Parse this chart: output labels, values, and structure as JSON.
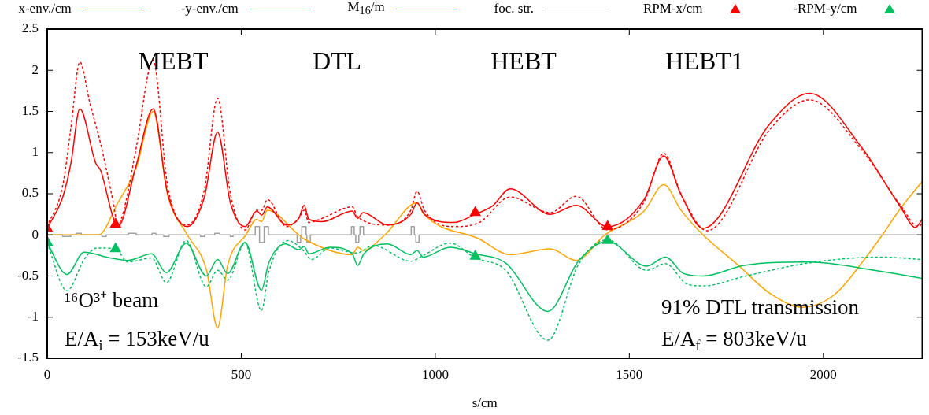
{
  "chart_data": {
    "type": "line",
    "xlabel": "s/cm",
    "xlim": [
      0,
      2255
    ],
    "xticks": [
      0,
      500,
      1000,
      1500,
      2000
    ],
    "ylim": [
      -1.5,
      2.5
    ],
    "yticks": [
      -1.5,
      -1,
      -0.5,
      0,
      0.5,
      1,
      1.5,
      2,
      2.5
    ],
    "legend": "top",
    "series": [
      {
        "name": "x-env./cm",
        "color": "#ff0000",
        "line_style": "solid",
        "x": [
          0,
          40,
          61,
          84,
          125,
          138,
          168,
          182,
          229,
          273,
          310,
          361,
          405,
          439,
          472,
          510,
          540,
          553,
          567,
          617,
          648,
          662,
          674,
          708,
          786,
          800,
          814,
          877,
          937,
          953,
          972,
          1047,
          1103,
          1147,
          1193,
          1296,
          1363,
          1444,
          1538,
          1589,
          1633,
          1690,
          1862,
          1964,
          2099,
          2200,
          2237,
          2255
        ],
        "values": [
          0.08,
          0.46,
          0.87,
          1.53,
          0.87,
          0.78,
          0.24,
          0.1,
          0.84,
          1.53,
          0.51,
          0.1,
          0.46,
          1.25,
          0.39,
          0.1,
          0.29,
          0.24,
          0.34,
          0.12,
          0.2,
          0.36,
          0.19,
          0.16,
          0.29,
          0.2,
          0.27,
          0.12,
          0.25,
          0.39,
          0.25,
          0.15,
          0.25,
          0.35,
          0.56,
          0.25,
          0.36,
          0.1,
          0.43,
          0.96,
          0.49,
          0.08,
          1.35,
          1.72,
          1.06,
          0.33,
          0.09,
          0.19
        ]
      },
      {
        "color": "#ff0000",
        "line_style": "dotted",
        "x": [
          0,
          40,
          61,
          84,
          110,
          138,
          170,
          182,
          200,
          229,
          273,
          310,
          361,
          405,
          439,
          472,
          510,
          540,
          553,
          567,
          617,
          648,
          662,
          674,
          708,
          786,
          800,
          877,
          937,
          953,
          972,
          1047,
          1113,
          1193,
          1296,
          1363,
          1444,
          1538,
          1589,
          1633,
          1700,
          1862,
          1964,
          2099,
          2200,
          2245,
          2255
        ],
        "values": [
          0.1,
          0.6,
          1.3,
          2.1,
          1.6,
          1.1,
          0.4,
          0.12,
          0.35,
          1.05,
          2.12,
          0.6,
          0.12,
          0.55,
          1.66,
          0.5,
          0.06,
          0.3,
          0.3,
          0.43,
          0.1,
          0.2,
          0.3,
          0.15,
          0.2,
          0.34,
          0.22,
          0.12,
          0.3,
          0.53,
          0.3,
          0.1,
          0.15,
          0.46,
          0.27,
          0.47,
          0.06,
          0.4,
          0.99,
          0.5,
          0.05,
          1.28,
          1.64,
          1.03,
          0.35,
          0.1,
          0.14
        ]
      },
      {
        "name": "-y-env./cm",
        "color": "#00c060",
        "line_style": "solid",
        "x": [
          0,
          51,
          95,
          162,
          208,
          269,
          307,
          358,
          410,
          439,
          465,
          510,
          552,
          571,
          614,
          648,
          662,
          674,
          729,
          786,
          800,
          816,
          877,
          937,
          953,
          969,
          1038,
          1103,
          1181,
          1290,
          1370,
          1444,
          1545,
          1593,
          1640,
          1690,
          1796,
          1964,
          2132,
          2255
        ],
        "values": [
          -0.1,
          -0.48,
          -0.21,
          -0.28,
          -0.31,
          -0.23,
          -0.46,
          -0.1,
          -0.5,
          -0.3,
          -0.47,
          -0.09,
          -0.67,
          -0.34,
          -0.11,
          -0.18,
          -0.14,
          -0.23,
          -0.15,
          -0.23,
          -0.37,
          -0.23,
          -0.11,
          -0.24,
          -0.19,
          -0.27,
          -0.15,
          -0.23,
          -0.34,
          -0.93,
          -0.31,
          -0.08,
          -0.38,
          -0.27,
          -0.47,
          -0.5,
          -0.37,
          -0.33,
          -0.43,
          -0.53
        ]
      },
      {
        "color": "#00c060",
        "line_style": "dotted",
        "x": [
          0,
          51,
          95,
          128,
          176,
          208,
          269,
          307,
          358,
          410,
          439,
          465,
          510,
          552,
          571,
          620,
          662,
          680,
          729,
          797,
          840,
          937,
          969,
          1038,
          1103,
          1181,
          1290,
          1370,
          1444,
          1545,
          1593,
          1650,
          1690,
          1800,
          1964,
          2148,
          2255
        ],
        "values": [
          -0.1,
          -0.68,
          -0.3,
          -0.16,
          -0.17,
          -0.33,
          -0.28,
          -0.58,
          -0.07,
          -0.63,
          -0.43,
          -0.55,
          -0.1,
          -0.92,
          -0.45,
          -0.07,
          -0.2,
          -0.3,
          -0.16,
          -0.22,
          -0.13,
          -0.32,
          -0.25,
          -0.1,
          -0.28,
          -0.43,
          -1.28,
          -0.35,
          -0.06,
          -0.43,
          -0.35,
          -0.6,
          -0.62,
          -0.5,
          -0.34,
          -0.27,
          -0.3
        ]
      },
      {
        "name": "M$_{16}$/m",
        "color": "#ffa500",
        "line_style": "solid",
        "x": [
          0,
          132,
          182,
          229,
          273,
          310,
          361,
          410,
          439,
          465,
          512,
          540,
          552,
          567,
          648,
          662,
          786,
          800,
          814,
          870,
          953,
          969,
          1113,
          1193,
          1296,
          1363,
          1437,
          1538,
          1589,
          1633,
          1690,
          1781,
          1862,
          1947,
          2030,
          2099,
          2152,
          2200,
          2255
        ],
        "values": [
          0,
          0,
          0.39,
          0.81,
          1.5,
          0.49,
          0,
          -0.42,
          -1.13,
          -0.37,
          0,
          0.19,
          0.16,
          0.3,
          0,
          -0.05,
          -0.24,
          -0.15,
          -0.19,
          0,
          0.39,
          0.26,
          -0.05,
          -0.24,
          -0.17,
          -0.31,
          0,
          0.29,
          0.61,
          0.3,
          0,
          -0.37,
          -0.71,
          -0.88,
          -0.72,
          -0.34,
          0,
          0.33,
          0.65
        ]
      },
      {
        "name": "foc. str.",
        "type": "step",
        "color": "#a0a0a0",
        "line_style": "solid",
        "x": [
          0,
          40,
          61,
          74,
          88,
          141,
          152,
          209,
          229,
          270,
          280,
          300,
          314,
          395,
          405,
          432,
          445,
          472,
          479,
          536,
          547,
          559,
          570,
          644,
          653,
          656,
          667,
          669,
          678,
          784,
          791,
          795,
          803,
          806,
          815,
          938,
          946,
          950,
          958,
          2255
        ],
        "values": [
          0,
          -0.02,
          0,
          0.02,
          0,
          -0.02,
          0,
          0.02,
          0,
          0.02,
          0,
          -0.02,
          0,
          -0.02,
          0,
          0.02,
          0,
          -0.02,
          0,
          0.1,
          -0.09,
          0.1,
          0,
          -0.09,
          0,
          0.1,
          0,
          -0.09,
          0,
          0.1,
          0,
          -0.09,
          0,
          0.1,
          0,
          0.1,
          0,
          -0.09,
          0,
          0
        ]
      },
      {
        "name": "RPM-x/cm",
        "type": "scatter",
        "marker": "triangle",
        "color": "#ff0000",
        "x": [
          0,
          176,
          1103,
          1444
        ],
        "values": [
          0.08,
          0.13,
          0.27,
          0.1
        ]
      },
      {
        "name": "-RPM-y/cm",
        "type": "scatter",
        "marker": "triangle",
        "color": "#00c060",
        "x": [
          0,
          176,
          1103,
          1444
        ],
        "values": [
          -0.09,
          -0.17,
          -0.26,
          -0.07
        ]
      }
    ],
    "annotations": [
      "MEBT",
      "DTL",
      "HEBT",
      "HEBT1",
      "¹⁶O³⁺ beam",
      "E/A$_{i}$ = 153keV/u",
      "91% DTL transmission",
      "E/A$_{f}$ = 803keV/u"
    ]
  }
}
